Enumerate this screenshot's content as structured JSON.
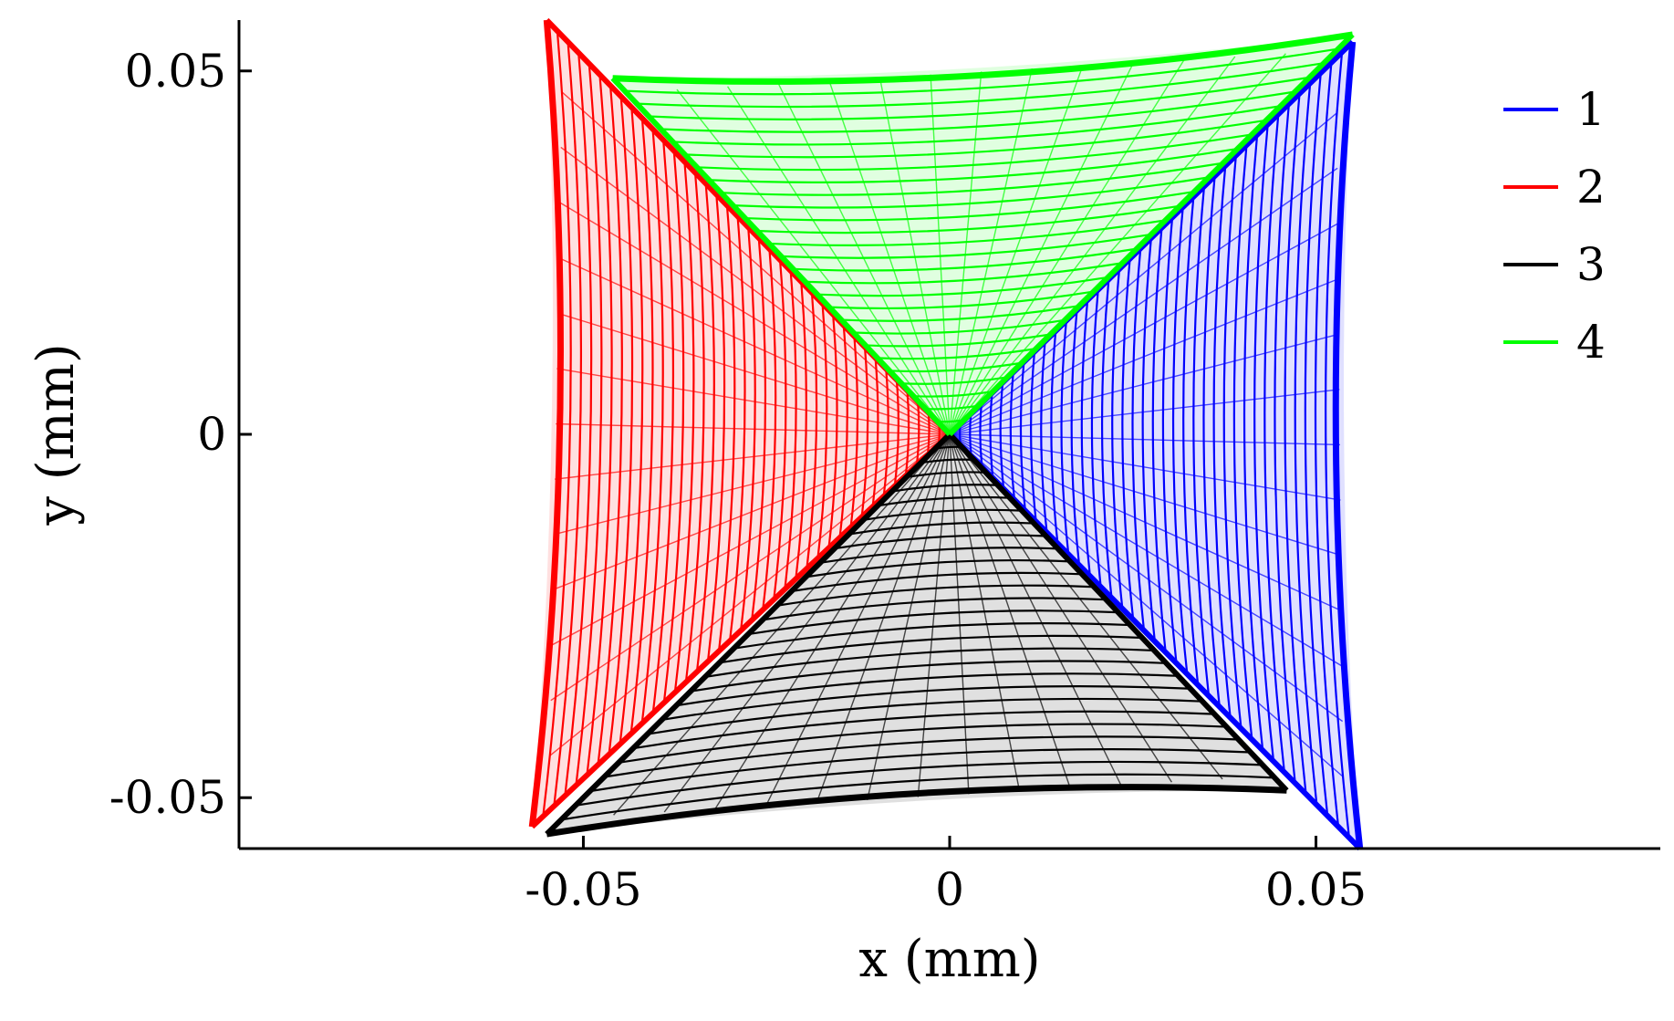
{
  "chart_data": {
    "type": "line",
    "title": "",
    "xlabel": "x (mm)",
    "ylabel": "y (mm)",
    "xlim": [
      -0.097,
      0.097
    ],
    "ylim": [
      -0.057,
      0.057
    ],
    "xticks": [
      -0.05,
      0,
      0.05
    ],
    "xtick_labels": [
      "-0.05",
      "0",
      "0.05"
    ],
    "yticks": [
      -0.05,
      0,
      0.05
    ],
    "ytick_labels": [
      "-0.05",
      "0",
      "0.05"
    ],
    "grid": false,
    "legend_position": "top-right",
    "series": [
      {
        "name": "1",
        "color": "#0000ff",
        "description_region": "right quadrant",
        "vertices": [
          [
            0,
            0
          ],
          [
            0.055,
            0.054
          ],
          [
            0.056,
            -0.057
          ]
        ],
        "loop_count": 38,
        "outer_edge_x": 0.055
      },
      {
        "name": "2",
        "color": "#ff0000",
        "description_region": "left quadrant",
        "vertices": [
          [
            0,
            0
          ],
          [
            -0.055,
            0.057
          ],
          [
            -0.057,
            -0.054
          ]
        ],
        "loop_count": 38,
        "outer_edge_x": -0.055
      },
      {
        "name": "3",
        "color": "#000000",
        "description_region": "bottom quadrant",
        "vertices": [
          [
            0,
            0
          ],
          [
            -0.055,
            -0.055
          ],
          [
            0.046,
            -0.049
          ]
        ],
        "loop_count": 28,
        "outer_edge_y": -0.049
      },
      {
        "name": "4",
        "color": "#00ff00",
        "description_region": "top quadrant",
        "vertices": [
          [
            0,
            0
          ],
          [
            -0.046,
            0.049
          ],
          [
            0.055,
            0.055
          ]
        ],
        "loop_count": 28,
        "outer_edge_y": 0.049
      }
    ]
  }
}
